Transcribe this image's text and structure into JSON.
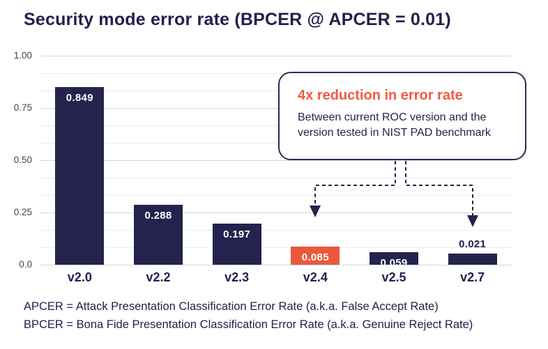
{
  "title": "Security mode error rate (BPCER @ APCER = 0.01)",
  "chart_data": {
    "type": "bar",
    "title": "Security mode error rate (BPCER @ APCER = 0.01)",
    "categories": [
      "v2.0",
      "v2.2",
      "v2.3",
      "v2.4",
      "v2.5",
      "v2.7"
    ],
    "values": [
      0.849,
      0.288,
      0.197,
      0.085,
      0.059,
      0.021
    ],
    "bar_labels": [
      "0.849",
      "0.288",
      "0.197",
      "0.085",
      "0.059",
      "0.021"
    ],
    "label_placement": [
      "inside",
      "inside",
      "inside",
      "inside",
      "inside",
      "above"
    ],
    "highlight_index": 3,
    "xlabel": "",
    "ylabel": "",
    "ylim": [
      0,
      1.0
    ],
    "y_ticks": [
      "1.00",
      "0.75",
      "0.50",
      "0.25",
      "0.0"
    ],
    "y_tick_values": [
      1.0,
      0.75,
      0.5,
      0.25,
      0.0
    ],
    "minor_gridlines_per_major_gap": 2,
    "grid": "horizontal",
    "legend": "none",
    "colors": {
      "bar_default": "#23234E",
      "bar_highlight": "#E8583C",
      "label_inside": "#ffffff",
      "label_above": "#21214E"
    }
  },
  "callout": {
    "title": "4x reduction in error rate",
    "body_line1": "Between current ROC version and the",
    "body_line2": "version tested in NIST PAD benchmark",
    "arrow_target_categories": [
      "v2.4",
      "v2.7"
    ],
    "arrow_target_indices": [
      3,
      5
    ],
    "title_color": "#F15B40",
    "border_color": "#2c2c53",
    "arrow_color": "#23234E"
  },
  "footer": {
    "line1": "APCER = Attack Presentation Classification Error Rate (a.k.a. False Accept Rate)",
    "line2": "BPCER = Bona Fide Presentation Classification Error Rate (a.k.a. Genuine Reject Rate)"
  }
}
